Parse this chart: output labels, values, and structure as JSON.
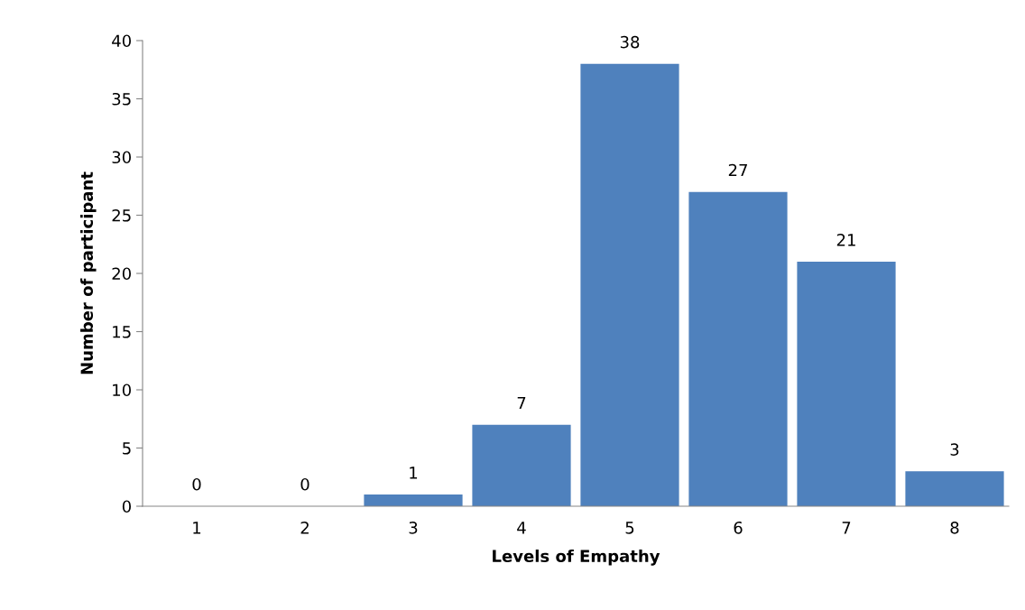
{
  "chart_data": {
    "type": "bar",
    "xlabel": "Levels of Empathy",
    "ylabel": "Number of participant",
    "categories": [
      "1",
      "2",
      "3",
      "4",
      "5",
      "6",
      "7",
      "8"
    ],
    "values": [
      0,
      0,
      1,
      7,
      38,
      27,
      21,
      3
    ],
    "color": "#4f81bd",
    "ylim": [
      0,
      40
    ],
    "yticks": [
      0,
      5,
      10,
      15,
      20,
      25,
      30,
      35,
      40
    ],
    "data_labels": true,
    "grid": false
  }
}
